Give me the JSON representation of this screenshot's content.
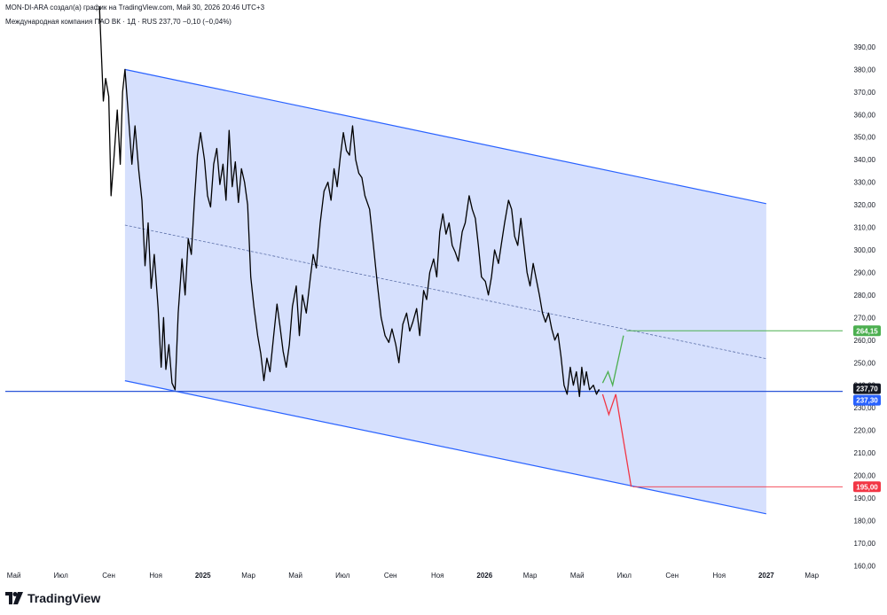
{
  "header": {
    "attribution": "MON-DI-ARA создал(а) график на TradingView.com, Май 30, 2026 20:46 UTC+3",
    "symbol_line": "Международная компания ПАО ВК · 1Д · RUS  237,70  −0,10 (−0,04%)"
  },
  "branding": {
    "logo_text": "TradingView"
  },
  "colors": {
    "channel_fill": "#d6e0fd",
    "channel_line": "#2962ff",
    "midline": "#5b6fa8",
    "price_line": "#000000",
    "level_line": "#2a55d8",
    "bull_path": "#4caf50",
    "bear_path": "#f23645",
    "target_up": "#4caf50",
    "target_down": "#f23645",
    "last_price": "#131722",
    "blue_tag": "#2962ff"
  },
  "chart_data": {
    "type": "line",
    "y_axis": {
      "range": [
        157,
        399
      ],
      "ticks": [
        390,
        380,
        370,
        360,
        350,
        340,
        330,
        320,
        310,
        300,
        290,
        280,
        270,
        260,
        250,
        240,
        230,
        220,
        210,
        200,
        190,
        180,
        170,
        160
      ],
      "tick_labels": [
        "390,00",
        "380,00",
        "370,00",
        "360,00",
        "350,00",
        "340,00",
        "330,00",
        "320,00",
        "310,00",
        "300,00",
        "290,00",
        "280,00",
        "270,00",
        "260,00",
        "250,00",
        "240,00",
        "230,00",
        "220,00",
        "210,00",
        "200,00",
        "190,00",
        "180,00",
        "170,00",
        "160,00"
      ]
    },
    "x_axis": {
      "range": [
        "2024-04-20",
        "2027-04-10"
      ],
      "ticks": [
        {
          "date": "2024-05-01",
          "label": "Май",
          "bold": false
        },
        {
          "date": "2024-07-01",
          "label": "Июл",
          "bold": false
        },
        {
          "date": "2024-09-01",
          "label": "Сен",
          "bold": false
        },
        {
          "date": "2024-11-01",
          "label": "Ноя",
          "bold": false
        },
        {
          "date": "2025-01-01",
          "label": "2025",
          "bold": true
        },
        {
          "date": "2025-03-01",
          "label": "Мар",
          "bold": false
        },
        {
          "date": "2025-05-01",
          "label": "Май",
          "bold": false
        },
        {
          "date": "2025-07-01",
          "label": "Июл",
          "bold": false
        },
        {
          "date": "2025-09-01",
          "label": "Сен",
          "bold": false
        },
        {
          "date": "2025-11-01",
          "label": "Ноя",
          "bold": false
        },
        {
          "date": "2026-01-01",
          "label": "2026",
          "bold": true
        },
        {
          "date": "2026-03-01",
          "label": "Мар",
          "bold": false
        },
        {
          "date": "2026-05-01",
          "label": "Май",
          "bold": false
        },
        {
          "date": "2026-07-01",
          "label": "Июл",
          "bold": false
        },
        {
          "date": "2026-09-01",
          "label": "Сен",
          "bold": false
        },
        {
          "date": "2026-11-01",
          "label": "Ноя",
          "bold": false
        },
        {
          "date": "2027-01-01",
          "label": "2027",
          "bold": true
        },
        {
          "date": "2027-03-01",
          "label": "Мар",
          "bold": false
        }
      ]
    },
    "series": [
      {
        "points": [
          [
            "2024-08-20",
            408
          ],
          [
            "2024-08-25",
            366
          ],
          [
            "2024-08-28",
            376
          ],
          [
            "2024-09-01",
            368
          ],
          [
            "2024-09-04",
            324
          ],
          [
            "2024-09-08",
            342
          ],
          [
            "2024-09-12",
            362
          ],
          [
            "2024-09-16",
            338
          ],
          [
            "2024-09-19",
            370
          ],
          [
            "2024-09-22",
            380
          ],
          [
            "2024-09-26",
            362
          ],
          [
            "2024-10-01",
            338
          ],
          [
            "2024-10-05",
            355
          ],
          [
            "2024-10-10",
            335
          ],
          [
            "2024-10-14",
            322
          ],
          [
            "2024-10-18",
            293
          ],
          [
            "2024-10-22",
            312
          ],
          [
            "2024-10-26",
            283
          ],
          [
            "2024-10-30",
            298
          ],
          [
            "2024-11-04",
            274
          ],
          [
            "2024-11-08",
            248
          ],
          [
            "2024-11-11",
            270
          ],
          [
            "2024-11-14",
            247
          ],
          [
            "2024-11-18",
            258
          ],
          [
            "2024-11-22",
            241
          ],
          [
            "2024-11-26",
            238
          ],
          [
            "2024-11-30",
            272
          ],
          [
            "2024-12-05",
            296
          ],
          [
            "2024-12-09",
            280
          ],
          [
            "2024-12-13",
            305
          ],
          [
            "2024-12-17",
            298
          ],
          [
            "2024-12-21",
            322
          ],
          [
            "2024-12-25",
            342
          ],
          [
            "2024-12-29",
            352
          ],
          [
            "2025-01-03",
            340
          ],
          [
            "2025-01-07",
            324
          ],
          [
            "2025-01-11",
            319
          ],
          [
            "2025-01-15",
            338
          ],
          [
            "2025-01-19",
            345
          ],
          [
            "2025-01-23",
            329
          ],
          [
            "2025-01-27",
            338
          ],
          [
            "2025-01-31",
            322
          ],
          [
            "2025-02-04",
            353
          ],
          [
            "2025-02-08",
            328
          ],
          [
            "2025-02-12",
            339
          ],
          [
            "2025-02-16",
            321
          ],
          [
            "2025-02-20",
            336
          ],
          [
            "2025-02-24",
            330
          ],
          [
            "2025-02-28",
            320
          ],
          [
            "2025-03-04",
            288
          ],
          [
            "2025-03-08",
            275
          ],
          [
            "2025-03-13",
            262
          ],
          [
            "2025-03-17",
            254
          ],
          [
            "2025-03-21",
            242
          ],
          [
            "2025-03-25",
            252
          ],
          [
            "2025-03-29",
            246
          ],
          [
            "2025-04-03",
            263
          ],
          [
            "2025-04-07",
            276
          ],
          [
            "2025-04-11",
            266
          ],
          [
            "2025-04-15",
            255
          ],
          [
            "2025-04-19",
            248
          ],
          [
            "2025-04-23",
            258
          ],
          [
            "2025-04-27",
            275
          ],
          [
            "2025-05-02",
            284
          ],
          [
            "2025-05-06",
            262
          ],
          [
            "2025-05-10",
            280
          ],
          [
            "2025-05-15",
            272
          ],
          [
            "2025-05-20",
            287
          ],
          [
            "2025-05-24",
            298
          ],
          [
            "2025-05-28",
            292
          ],
          [
            "2025-06-02",
            312
          ],
          [
            "2025-06-07",
            326
          ],
          [
            "2025-06-12",
            330
          ],
          [
            "2025-06-16",
            322
          ],
          [
            "2025-06-20",
            336
          ],
          [
            "2025-06-24",
            328
          ],
          [
            "2025-06-28",
            341
          ],
          [
            "2025-07-02",
            352
          ],
          [
            "2025-07-06",
            344
          ],
          [
            "2025-07-10",
            342
          ],
          [
            "2025-07-14",
            355
          ],
          [
            "2025-07-18",
            340
          ],
          [
            "2025-07-22",
            334
          ],
          [
            "2025-07-26",
            332
          ],
          [
            "2025-07-30",
            324
          ],
          [
            "2025-08-05",
            318
          ],
          [
            "2025-08-10",
            302
          ],
          [
            "2025-08-15",
            285
          ],
          [
            "2025-08-20",
            270
          ],
          [
            "2025-08-25",
            262
          ],
          [
            "2025-08-30",
            259
          ],
          [
            "2025-09-03",
            265
          ],
          [
            "2025-09-08",
            258
          ],
          [
            "2025-09-12",
            250
          ],
          [
            "2025-09-17",
            267
          ],
          [
            "2025-09-22",
            272
          ],
          [
            "2025-09-26",
            264
          ],
          [
            "2025-09-30",
            268
          ],
          [
            "2025-10-05",
            274
          ],
          [
            "2025-10-09",
            262
          ],
          [
            "2025-10-14",
            282
          ],
          [
            "2025-10-18",
            278
          ],
          [
            "2025-10-22",
            290
          ],
          [
            "2025-10-27",
            296
          ],
          [
            "2025-10-31",
            288
          ],
          [
            "2025-11-04",
            308
          ],
          [
            "2025-11-08",
            316
          ],
          [
            "2025-11-12",
            307
          ],
          [
            "2025-11-16",
            312
          ],
          [
            "2025-11-20",
            302
          ],
          [
            "2025-11-24",
            299
          ],
          [
            "2025-11-28",
            295
          ],
          [
            "2025-12-03",
            308
          ],
          [
            "2025-12-07",
            312
          ],
          [
            "2025-12-12",
            324
          ],
          [
            "2025-12-16",
            318
          ],
          [
            "2025-12-20",
            314
          ],
          [
            "2025-12-24",
            302
          ],
          [
            "2025-12-28",
            288
          ],
          [
            "2026-01-02",
            286
          ],
          [
            "2026-01-06",
            280
          ],
          [
            "2026-01-10",
            288
          ],
          [
            "2026-01-14",
            300
          ],
          [
            "2026-01-19",
            294
          ],
          [
            "2026-01-23",
            303
          ],
          [
            "2026-01-27",
            312
          ],
          [
            "2026-02-01",
            322
          ],
          [
            "2026-02-05",
            318
          ],
          [
            "2026-02-09",
            306
          ],
          [
            "2026-02-13",
            302
          ],
          [
            "2026-02-17",
            314
          ],
          [
            "2026-02-21",
            302
          ],
          [
            "2026-02-25",
            290
          ],
          [
            "2026-03-01",
            284
          ],
          [
            "2026-03-05",
            294
          ],
          [
            "2026-03-09",
            287
          ],
          [
            "2026-03-13",
            280
          ],
          [
            "2026-03-17",
            272
          ],
          [
            "2026-03-21",
            268
          ],
          [
            "2026-03-25",
            272
          ],
          [
            "2026-03-29",
            265
          ],
          [
            "2026-04-02",
            260
          ],
          [
            "2026-04-06",
            263
          ],
          [
            "2026-04-10",
            253
          ],
          [
            "2026-04-14",
            240
          ],
          [
            "2026-04-18",
            236
          ],
          [
            "2026-04-22",
            248
          ],
          [
            "2026-04-26",
            240
          ],
          [
            "2026-04-30",
            246
          ],
          [
            "2026-05-04",
            235
          ],
          [
            "2026-05-07",
            248
          ],
          [
            "2026-05-10",
            240
          ],
          [
            "2026-05-13",
            246
          ],
          [
            "2026-05-17",
            238
          ],
          [
            "2026-05-22",
            240
          ],
          [
            "2026-05-26",
            236
          ],
          [
            "2026-05-29",
            238
          ],
          [
            "2026-05-30",
            237.7
          ]
        ]
      }
    ],
    "channel": {
      "upper": [
        [
          "2024-09-22",
          380
        ],
        [
          "2027-01-01",
          320.5
        ]
      ],
      "lower": [
        [
          "2024-09-22",
          242
        ],
        [
          "2027-01-01",
          183
        ]
      ],
      "midline": [
        [
          "2024-09-22",
          311
        ],
        [
          "2027-01-01",
          251.8
        ]
      ]
    },
    "horizontal_level": 237.3,
    "projections": {
      "bullish": [
        [
          "2026-06-03",
          241
        ],
        [
          "2026-06-10",
          246
        ],
        [
          "2026-06-16",
          240
        ],
        [
          "2026-06-30",
          262
        ]
      ],
      "bearish": [
        [
          "2026-06-03",
          236
        ],
        [
          "2026-06-11",
          227
        ],
        [
          "2026-06-20",
          236
        ],
        [
          "2026-07-10",
          195
        ]
      ]
    },
    "target_lines": [
      {
        "value": 264.15,
        "from": "2026-07-04",
        "label": "264,15",
        "color": "#4caf50"
      },
      {
        "value": 195.0,
        "from": "2026-07-12",
        "label": "195,00",
        "color": "#f23645"
      }
    ],
    "price_tags": [
      {
        "value": 237.7,
        "label": "237,70",
        "color": "#131722"
      },
      {
        "value": 237.3,
        "label": "237,30",
        "color": "#2962ff"
      }
    ]
  }
}
